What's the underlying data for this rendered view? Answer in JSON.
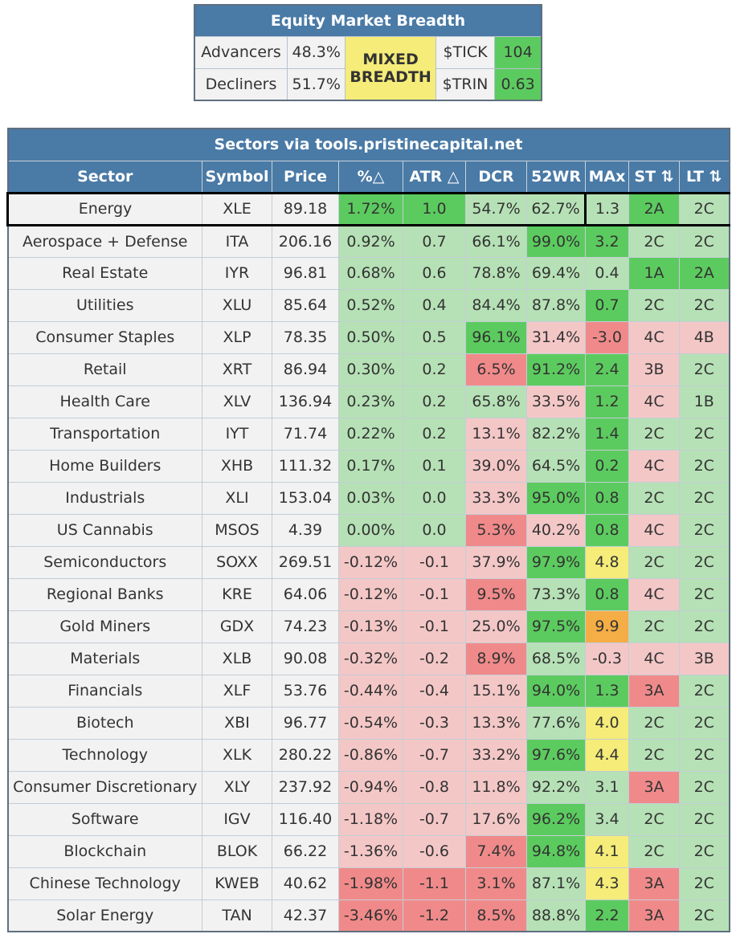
{
  "breadth": {
    "title": "Equity Market Breadth",
    "advancers_label": "Advancers",
    "advancers_value": "48.3%",
    "decliners_label": "Decliners",
    "decliners_value": "51.7%",
    "status_line1": "MIXED",
    "status_line2": "BREADTH",
    "tick_label": "$TICK",
    "tick_value": "104",
    "trin_label": "$TRIN",
    "trin_value": "0.63"
  },
  "sectors": {
    "title": "Sectors via tools.pristinecapital.net",
    "columns": [
      "Sector",
      "Symbol",
      "Price",
      "%△",
      "ATR △",
      "DCR",
      "52WR",
      "MAx",
      "ST ⇅",
      "LT ⇅"
    ],
    "rows": [
      [
        "Energy",
        "XLE",
        "89.18",
        "1.72%",
        "1.0",
        "54.7%",
        "62.7%",
        "1.3",
        "2A",
        "2C"
      ],
      [
        "Aerospace + Defense",
        "ITA",
        "206.16",
        "0.92%",
        "0.7",
        "66.1%",
        "99.0%",
        "3.2",
        "2C",
        "2C"
      ],
      [
        "Real Estate",
        "IYR",
        "96.81",
        "0.68%",
        "0.6",
        "78.8%",
        "69.4%",
        "0.4",
        "1A",
        "2A"
      ],
      [
        "Utilities",
        "XLU",
        "85.64",
        "0.52%",
        "0.4",
        "84.4%",
        "87.8%",
        "0.7",
        "2C",
        "2C"
      ],
      [
        "Consumer Staples",
        "XLP",
        "78.35",
        "0.50%",
        "0.5",
        "96.1%",
        "31.4%",
        "-3.0",
        "4C",
        "4B"
      ],
      [
        "Retail",
        "XRT",
        "86.94",
        "0.30%",
        "0.2",
        "6.5%",
        "91.2%",
        "2.4",
        "3B",
        "2C"
      ],
      [
        "Health Care",
        "XLV",
        "136.94",
        "0.23%",
        "0.2",
        "65.8%",
        "33.5%",
        "1.2",
        "4C",
        "1B"
      ],
      [
        "Transportation",
        "IYT",
        "71.74",
        "0.22%",
        "0.2",
        "13.1%",
        "82.2%",
        "1.4",
        "2C",
        "2C"
      ],
      [
        "Home Builders",
        "XHB",
        "111.32",
        "0.17%",
        "0.1",
        "39.0%",
        "64.5%",
        "0.2",
        "4C",
        "2C"
      ],
      [
        "Industrials",
        "XLI",
        "153.04",
        "0.03%",
        "0.0",
        "33.3%",
        "95.0%",
        "0.8",
        "2C",
        "2C"
      ],
      [
        "US Cannabis",
        "MSOS",
        "4.39",
        "0.00%",
        "0.0",
        "5.3%",
        "40.2%",
        "0.8",
        "4C",
        "2C"
      ],
      [
        "Semiconductors",
        "SOXX",
        "269.51",
        "-0.12%",
        "-0.1",
        "37.9%",
        "97.9%",
        "4.8",
        "2C",
        "2C"
      ],
      [
        "Regional Banks",
        "KRE",
        "64.06",
        "-0.12%",
        "-0.1",
        "9.5%",
        "73.3%",
        "0.8",
        "4C",
        "2C"
      ],
      [
        "Gold Miners",
        "GDX",
        "74.23",
        "-0.13%",
        "-0.1",
        "25.0%",
        "97.5%",
        "9.9",
        "2C",
        "2C"
      ],
      [
        "Materials",
        "XLB",
        "90.08",
        "-0.32%",
        "-0.2",
        "8.9%",
        "68.5%",
        "-0.3",
        "4C",
        "3B"
      ],
      [
        "Financials",
        "XLF",
        "53.76",
        "-0.44%",
        "-0.4",
        "15.1%",
        "94.0%",
        "1.3",
        "3A",
        "2C"
      ],
      [
        "Biotech",
        "XBI",
        "96.77",
        "-0.54%",
        "-0.3",
        "13.3%",
        "77.6%",
        "4.0",
        "2C",
        "2C"
      ],
      [
        "Technology",
        "XLK",
        "280.22",
        "-0.86%",
        "-0.7",
        "33.2%",
        "97.6%",
        "4.4",
        "2C",
        "2C"
      ],
      [
        "Consumer Discretionary",
        "XLY",
        "237.92",
        "-0.94%",
        "-0.8",
        "11.8%",
        "92.2%",
        "3.1",
        "3A",
        "2C"
      ],
      [
        "Software",
        "IGV",
        "116.40",
        "-1.18%",
        "-0.7",
        "17.6%",
        "96.2%",
        "3.4",
        "2C",
        "2C"
      ],
      [
        "Blockchain",
        "BLOK",
        "66.22",
        "-1.36%",
        "-0.6",
        "7.4%",
        "94.8%",
        "4.1",
        "2C",
        "2C"
      ],
      [
        "Chinese Technology",
        "KWEB",
        "40.62",
        "-1.98%",
        "-1.1",
        "3.1%",
        "87.1%",
        "4.3",
        "3A",
        "2C"
      ],
      [
        "Solar Energy",
        "TAN",
        "42.37",
        "-3.46%",
        "-1.2",
        "8.5%",
        "88.8%",
        "2.2",
        "3A",
        "2C"
      ]
    ],
    "cell_colors": [
      [
        "#f2f2f2",
        "#f2f2f2",
        "#f2f2f2",
        "#5ccb5f",
        "#5ccb5f",
        "#b6e1b6",
        "#b6e1b6",
        "#b6e1b6",
        "#5ccb5f",
        "#b6e1b6"
      ],
      [
        "#f2f2f2",
        "#f2f2f2",
        "#f2f2f2",
        "#b6e1b6",
        "#b6e1b6",
        "#b6e1b6",
        "#5ccb5f",
        "#5ccb5f",
        "#b6e1b6",
        "#b6e1b6"
      ],
      [
        "#f2f2f2",
        "#f2f2f2",
        "#f2f2f2",
        "#b6e1b6",
        "#b6e1b6",
        "#b6e1b6",
        "#b6e1b6",
        "#b6e1b6",
        "#5ccb5f",
        "#5ccb5f"
      ],
      [
        "#f2f2f2",
        "#f2f2f2",
        "#f2f2f2",
        "#b6e1b6",
        "#b6e1b6",
        "#b6e1b6",
        "#b6e1b6",
        "#5ccb5f",
        "#b6e1b6",
        "#b6e1b6"
      ],
      [
        "#f2f2f2",
        "#f2f2f2",
        "#f2f2f2",
        "#b6e1b6",
        "#b6e1b6",
        "#5ccb5f",
        "#f4c7c7",
        "#f08a8a",
        "#f4c7c7",
        "#f4c7c7"
      ],
      [
        "#f2f2f2",
        "#f2f2f2",
        "#f2f2f2",
        "#b6e1b6",
        "#b6e1b6",
        "#f08a8a",
        "#5ccb5f",
        "#5ccb5f",
        "#f4c7c7",
        "#b6e1b6"
      ],
      [
        "#f2f2f2",
        "#f2f2f2",
        "#f2f2f2",
        "#b6e1b6",
        "#b6e1b6",
        "#b6e1b6",
        "#f4c7c7",
        "#5ccb5f",
        "#f4c7c7",
        "#b6e1b6"
      ],
      [
        "#f2f2f2",
        "#f2f2f2",
        "#f2f2f2",
        "#b6e1b6",
        "#b6e1b6",
        "#f4c7c7",
        "#b6e1b6",
        "#5ccb5f",
        "#b6e1b6",
        "#b6e1b6"
      ],
      [
        "#f2f2f2",
        "#f2f2f2",
        "#f2f2f2",
        "#b6e1b6",
        "#b6e1b6",
        "#f4c7c7",
        "#b6e1b6",
        "#5ccb5f",
        "#f4c7c7",
        "#b6e1b6"
      ],
      [
        "#f2f2f2",
        "#f2f2f2",
        "#f2f2f2",
        "#b6e1b6",
        "#b6e1b6",
        "#f4c7c7",
        "#5ccb5f",
        "#5ccb5f",
        "#b6e1b6",
        "#b6e1b6"
      ],
      [
        "#f2f2f2",
        "#f2f2f2",
        "#f2f2f2",
        "#b6e1b6",
        "#b6e1b6",
        "#f08a8a",
        "#f4c7c7",
        "#5ccb5f",
        "#f4c7c7",
        "#b6e1b6"
      ],
      [
        "#f2f2f2",
        "#f2f2f2",
        "#f2f2f2",
        "#f4c7c7",
        "#f4c7c7",
        "#f4c7c7",
        "#5ccb5f",
        "#f5ec79",
        "#b6e1b6",
        "#b6e1b6"
      ],
      [
        "#f2f2f2",
        "#f2f2f2",
        "#f2f2f2",
        "#f4c7c7",
        "#f4c7c7",
        "#f08a8a",
        "#b6e1b6",
        "#5ccb5f",
        "#f4c7c7",
        "#b6e1b6"
      ],
      [
        "#f2f2f2",
        "#f2f2f2",
        "#f2f2f2",
        "#f4c7c7",
        "#f4c7c7",
        "#f4c7c7",
        "#5ccb5f",
        "#f5ad45",
        "#b6e1b6",
        "#b6e1b6"
      ],
      [
        "#f2f2f2",
        "#f2f2f2",
        "#f2f2f2",
        "#f4c7c7",
        "#f4c7c7",
        "#f08a8a",
        "#b6e1b6",
        "#f4c7c7",
        "#f4c7c7",
        "#f4c7c7"
      ],
      [
        "#f2f2f2",
        "#f2f2f2",
        "#f2f2f2",
        "#f4c7c7",
        "#f4c7c7",
        "#f4c7c7",
        "#5ccb5f",
        "#5ccb5f",
        "#f08a8a",
        "#b6e1b6"
      ],
      [
        "#f2f2f2",
        "#f2f2f2",
        "#f2f2f2",
        "#f4c7c7",
        "#f4c7c7",
        "#f4c7c7",
        "#b6e1b6",
        "#f5ec79",
        "#b6e1b6",
        "#b6e1b6"
      ],
      [
        "#f2f2f2",
        "#f2f2f2",
        "#f2f2f2",
        "#f4c7c7",
        "#f4c7c7",
        "#f4c7c7",
        "#5ccb5f",
        "#f5ec79",
        "#b6e1b6",
        "#b6e1b6"
      ],
      [
        "#f2f2f2",
        "#f2f2f2",
        "#f2f2f2",
        "#f4c7c7",
        "#f4c7c7",
        "#f4c7c7",
        "#b6e1b6",
        "#b6e1b6",
        "#f08a8a",
        "#b6e1b6"
      ],
      [
        "#f2f2f2",
        "#f2f2f2",
        "#f2f2f2",
        "#f4c7c7",
        "#f4c7c7",
        "#f4c7c7",
        "#5ccb5f",
        "#b6e1b6",
        "#b6e1b6",
        "#b6e1b6"
      ],
      [
        "#f2f2f2",
        "#f2f2f2",
        "#f2f2f2",
        "#f4c7c7",
        "#f4c7c7",
        "#f08a8a",
        "#5ccb5f",
        "#f5ec79",
        "#b6e1b6",
        "#b6e1b6"
      ],
      [
        "#f2f2f2",
        "#f2f2f2",
        "#f2f2f2",
        "#f08a8a",
        "#f08a8a",
        "#f08a8a",
        "#b6e1b6",
        "#f5ec79",
        "#f08a8a",
        "#b6e1b6"
      ],
      [
        "#f2f2f2",
        "#f2f2f2",
        "#f2f2f2",
        "#f08a8a",
        "#f08a8a",
        "#f08a8a",
        "#b6e1b6",
        "#5ccb5f",
        "#f08a8a",
        "#b6e1b6"
      ]
    ],
    "highlighted_row": "Energy"
  },
  "colors": {
    "header_bg": "#4a7aa6",
    "breadth_mixed": "#f5ec79",
    "tick_bg": "#5ccb5f",
    "trin_bg": "#5ccb5f"
  }
}
